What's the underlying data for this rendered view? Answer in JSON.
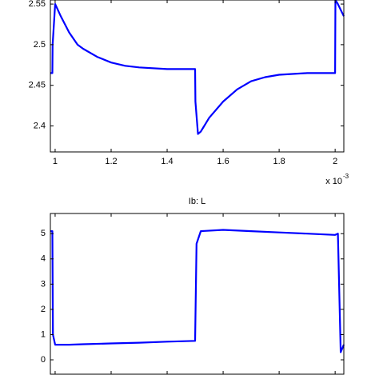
{
  "chart_data": [
    {
      "type": "line",
      "x": [
        0.983,
        0.99,
        0.991,
        1.0,
        1.02,
        1.05,
        1.08,
        1.1,
        1.15,
        1.2,
        1.25,
        1.3,
        1.4,
        1.5,
        1.501,
        1.51,
        1.52,
        1.55,
        1.6,
        1.65,
        1.7,
        1.75,
        1.8,
        1.9,
        2.0,
        2.001,
        2.01,
        2.031
      ],
      "values": [
        2.465,
        2.465,
        2.5,
        2.55,
        2.535,
        2.515,
        2.5,
        2.495,
        2.485,
        2.478,
        2.474,
        2.472,
        2.47,
        2.47,
        2.43,
        2.39,
        2.393,
        2.41,
        2.43,
        2.445,
        2.455,
        2.46,
        2.463,
        2.465,
        2.465,
        2.555,
        2.55,
        2.535
      ],
      "color": "#0000ff",
      "xlim": [
        0.983,
        2.031
      ],
      "xticks": [
        1,
        1.2,
        1.4,
        1.6,
        1.8,
        2
      ],
      "ylim": [
        2.368,
        2.555
      ],
      "yticks": [
        2.4,
        2.45,
        2.5,
        2.55
      ],
      "x_multiplier": "x 10",
      "x_multiplier_exponent": "-3"
    },
    {
      "type": "line",
      "title": "Ib: L",
      "x": [
        0.983,
        0.99,
        0.992,
        1.0,
        1.05,
        1.1,
        1.2,
        1.3,
        1.4,
        1.5,
        1.505,
        1.52,
        1.6,
        1.7,
        1.8,
        1.9,
        2.0,
        2.01,
        2.02,
        2.031
      ],
      "values": [
        5.1,
        5.1,
        1.0,
        0.6,
        0.6,
        0.62,
        0.65,
        0.68,
        0.72,
        0.75,
        4.6,
        5.1,
        5.15,
        5.1,
        5.05,
        5.0,
        4.95,
        5.0,
        0.3,
        0.6
      ],
      "color": "#0000ff",
      "xlim": [
        0.983,
        2.031
      ],
      "xticks": [
        1,
        1.2,
        1.4,
        1.6,
        1.8,
        2
      ],
      "ylim": [
        -0.57,
        5.8
      ],
      "yticks": [
        0,
        1,
        2,
        3,
        4,
        5
      ]
    }
  ]
}
